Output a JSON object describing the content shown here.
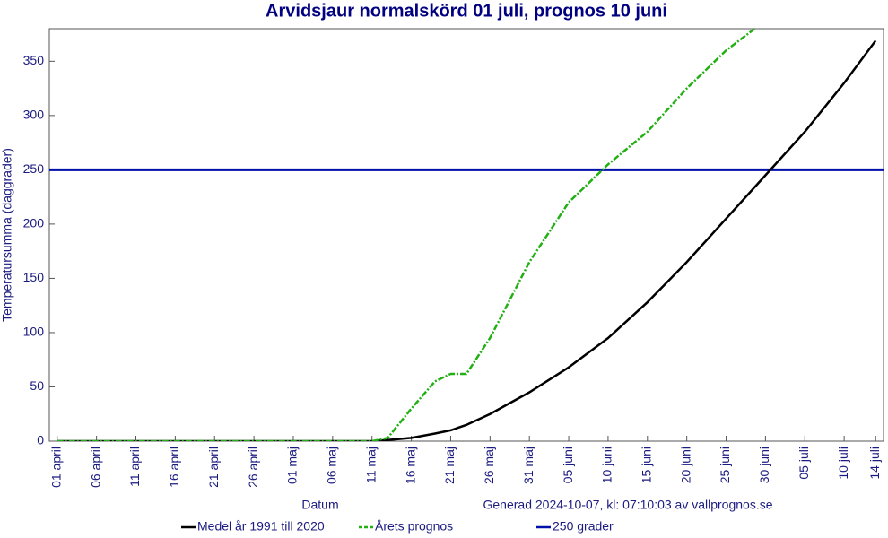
{
  "chart_data": {
    "type": "line",
    "title": "Arvidsjaur normalskörd 01 juli, prognos 10 juni",
    "y_label": "Temperatursumma (daggrader)",
    "x_label": "Datum",
    "note": "Generad 2024-10-07, kl: 07:10:03 av vallprognos.se",
    "x": [
      0,
      5,
      10,
      15,
      20,
      25,
      30,
      35,
      40,
      42,
      45,
      48,
      50,
      52,
      55,
      60,
      65,
      70,
      75,
      80,
      85,
      89,
      95,
      100,
      104
    ],
    "series": [
      {
        "name": "Medel år 1991 till 2020",
        "color": "#000000",
        "dash": false,
        "values": [
          0,
          0,
          0,
          0,
          0,
          0,
          0,
          0,
          0,
          1,
          3,
          7,
          10,
          15,
          25,
          45,
          68,
          95,
          128,
          165,
          205,
          237,
          285,
          330,
          369
        ]
      },
      {
        "name": "Årets prognos",
        "color": "#22b014",
        "dash": true,
        "values": [
          0,
          0,
          0,
          0,
          0,
          0,
          0,
          0,
          0,
          3,
          30,
          55,
          62,
          62,
          95,
          165,
          220,
          255,
          285,
          325,
          360,
          382,
          null,
          null,
          null
        ]
      }
    ],
    "reference_line": {
      "name": "250 grader",
      "value": 250,
      "color": "#0010a8"
    },
    "xlim": [
      -1,
      105
    ],
    "xticks": [
      {
        "value": 0,
        "label": "01 april"
      },
      {
        "value": 5,
        "label": "06 april"
      },
      {
        "value": 10,
        "label": "11 april"
      },
      {
        "value": 15,
        "label": "16 april"
      },
      {
        "value": 20,
        "label": "21 april"
      },
      {
        "value": 25,
        "label": "26 april"
      },
      {
        "value": 30,
        "label": "01 maj"
      },
      {
        "value": 35,
        "label": "06 maj"
      },
      {
        "value": 40,
        "label": "11 maj"
      },
      {
        "value": 45,
        "label": "16 maj"
      },
      {
        "value": 50,
        "label": "21 maj"
      },
      {
        "value": 55,
        "label": "26 maj"
      },
      {
        "value": 60,
        "label": "31 maj"
      },
      {
        "value": 65,
        "label": "05 juni"
      },
      {
        "value": 70,
        "label": "10 juni"
      },
      {
        "value": 75,
        "label": "15 juni"
      },
      {
        "value": 80,
        "label": "20 juni"
      },
      {
        "value": 85,
        "label": "25 juni"
      },
      {
        "value": 90,
        "label": "30 juni"
      },
      {
        "value": 95,
        "label": "05 juli"
      },
      {
        "value": 100,
        "label": "10 juli"
      },
      {
        "value": 104,
        "label": "14 juli"
      }
    ],
    "ylim": [
      0,
      380
    ],
    "yticks": [
      0,
      50,
      100,
      150,
      200,
      250,
      300,
      350
    ],
    "grid": false
  }
}
